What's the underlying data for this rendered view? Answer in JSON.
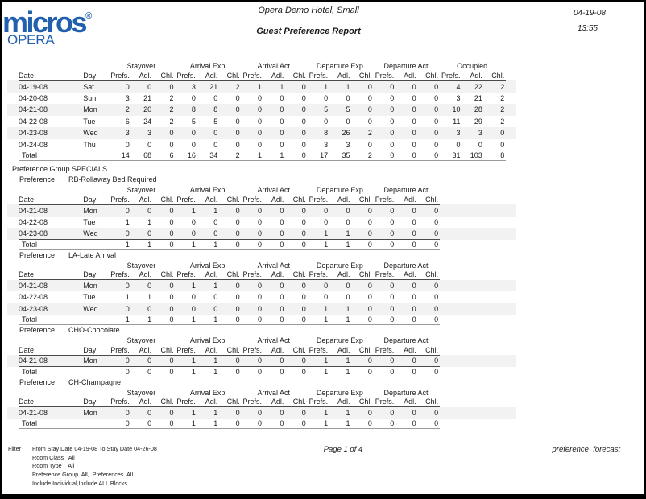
{
  "header": {
    "logo_text": "micros",
    "logo_reg": "®",
    "logo_sub": "OPERA",
    "hotel_name": "Opera Demo Hotel, Small",
    "report_title": "Guest Preference Report",
    "date": "04-19-08",
    "time": "13:55"
  },
  "labels": {
    "date": "Date",
    "day": "Day",
    "total": "Total",
    "preference_group": "Preference Group SPECIALS",
    "preference": "Preference"
  },
  "columns": {
    "groups_main": [
      "Stayover",
      "Arrival Exp",
      "Arrival Act",
      "Departure Exp",
      "Departure Act",
      "Occupied"
    ],
    "groups_sub": [
      "Stayover",
      "Arrival Exp",
      "Arrival Act",
      "Departure Exp",
      "Departure Act"
    ],
    "sub_headers": [
      "Prefs.",
      "Adl.",
      "Chl."
    ]
  },
  "main_table": {
    "rows": [
      {
        "date": "04-19-08",
        "day": "Sat",
        "values": [
          0,
          0,
          0,
          3,
          21,
          2,
          1,
          1,
          0,
          1,
          1,
          0,
          0,
          0,
          0,
          4,
          22,
          2
        ]
      },
      {
        "date": "04-20-08",
        "day": "Sun",
        "values": [
          3,
          21,
          2,
          0,
          0,
          0,
          0,
          0,
          0,
          0,
          0,
          0,
          0,
          0,
          0,
          3,
          21,
          2
        ]
      },
      {
        "date": "04-21-08",
        "day": "Mon",
        "values": [
          2,
          20,
          2,
          8,
          8,
          0,
          0,
          0,
          0,
          5,
          5,
          0,
          0,
          0,
          0,
          10,
          28,
          2
        ]
      },
      {
        "date": "04-22-08",
        "day": "Tue",
        "values": [
          6,
          24,
          2,
          5,
          5,
          0,
          0,
          0,
          0,
          0,
          0,
          0,
          0,
          0,
          0,
          11,
          29,
          2
        ]
      },
      {
        "date": "04-23-08",
        "day": "Wed",
        "values": [
          3,
          3,
          0,
          0,
          0,
          0,
          0,
          0,
          0,
          8,
          26,
          2,
          0,
          0,
          0,
          3,
          3,
          0
        ]
      },
      {
        "date": "04-24-08",
        "day": "Thu",
        "values": [
          0,
          0,
          0,
          0,
          0,
          0,
          0,
          0,
          0,
          3,
          3,
          0,
          0,
          0,
          0,
          0,
          0,
          0
        ]
      }
    ],
    "total": [
      14,
      68,
      6,
      16,
      34,
      2,
      1,
      1,
      0,
      17,
      35,
      2,
      0,
      0,
      0,
      31,
      103,
      8
    ]
  },
  "preference_sections": [
    {
      "name": "RB-Rollaway Bed Required",
      "rows": [
        {
          "date": "04-21-08",
          "day": "Mon",
          "values": [
            0,
            0,
            0,
            1,
            1,
            0,
            0,
            0,
            0,
            0,
            0,
            0,
            0,
            0,
            0
          ]
        },
        {
          "date": "04-22-08",
          "day": "Tue",
          "values": [
            1,
            1,
            0,
            0,
            0,
            0,
            0,
            0,
            0,
            0,
            0,
            0,
            0,
            0,
            0
          ]
        },
        {
          "date": "04-23-08",
          "day": "Wed",
          "values": [
            0,
            0,
            0,
            0,
            0,
            0,
            0,
            0,
            0,
            1,
            1,
            0,
            0,
            0,
            0
          ]
        }
      ],
      "total": [
        1,
        1,
        0,
        1,
        1,
        0,
        0,
        0,
        0,
        1,
        1,
        0,
        0,
        0,
        0
      ]
    },
    {
      "name": "LA-Late Arrival",
      "rows": [
        {
          "date": "04-21-08",
          "day": "Mon",
          "values": [
            0,
            0,
            0,
            1,
            1,
            0,
            0,
            0,
            0,
            0,
            0,
            0,
            0,
            0,
            0
          ]
        },
        {
          "date": "04-22-08",
          "day": "Tue",
          "values": [
            1,
            1,
            0,
            0,
            0,
            0,
            0,
            0,
            0,
            0,
            0,
            0,
            0,
            0,
            0
          ]
        },
        {
          "date": "04-23-08",
          "day": "Wed",
          "values": [
            0,
            0,
            0,
            0,
            0,
            0,
            0,
            0,
            0,
            1,
            1,
            0,
            0,
            0,
            0
          ]
        }
      ],
      "total": [
        1,
        1,
        0,
        1,
        1,
        0,
        0,
        0,
        0,
        1,
        1,
        0,
        0,
        0,
        0
      ]
    },
    {
      "name": "CHO-Chocolate",
      "rows": [
        {
          "date": "04-21-08",
          "day": "Mon",
          "values": [
            0,
            0,
            0,
            1,
            1,
            0,
            0,
            0,
            0,
            1,
            1,
            0,
            0,
            0,
            0
          ]
        }
      ],
      "total": [
        0,
        0,
        0,
        1,
        1,
        0,
        0,
        0,
        0,
        1,
        1,
        0,
        0,
        0,
        0
      ]
    },
    {
      "name": "CH-Champagne",
      "rows": [
        {
          "date": "04-21-08",
          "day": "Mon",
          "values": [
            0,
            0,
            0,
            1,
            1,
            0,
            0,
            0,
            0,
            1,
            1,
            0,
            0,
            0,
            0
          ]
        }
      ],
      "total": [
        0,
        0,
        0,
        1,
        1,
        0,
        0,
        0,
        0,
        1,
        1,
        0,
        0,
        0,
        0
      ]
    }
  ],
  "footer": {
    "filter_label": "Filter",
    "filter_lines": [
      "From Stay Date 04-19-08 To Stay Date 04-26-08",
      "Room Class   All",
      "Room Type    All",
      "Preference Group  All,  Preferences  All",
      "Include Individual,Include ALL Blocks"
    ],
    "page": "Page 1 of 4",
    "report_name": "preference_forecast"
  }
}
